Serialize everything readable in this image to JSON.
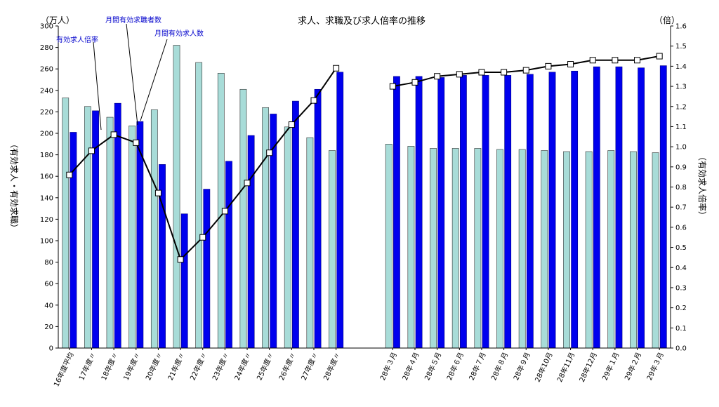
{
  "chart_data": {
    "type": "bar",
    "title": "求人、求職及び求人倍率の推移",
    "left_unit": "（万人）",
    "right_unit": "（倍）",
    "ylabel_left": "（有効求人・有効求職）",
    "ylabel_right": "（有効求人倍率）",
    "ylim_left": [
      0,
      300
    ],
    "ylim_right": [
      0,
      1.6
    ],
    "yticks_left": [
      "0",
      "20",
      "40",
      "60",
      "80",
      "100",
      "120",
      "140",
      "160",
      "180",
      "200",
      "220",
      "240",
      "260",
      "280",
      "300"
    ],
    "yticks_right": [
      "0.0",
      "0.1",
      "0.2",
      "0.3",
      "0.4",
      "0.5",
      "0.6",
      "0.7",
      "0.8",
      "0.9",
      "1.0",
      "1.1",
      "1.2",
      "1.3",
      "1.4",
      "1.5",
      "1.6"
    ],
    "categories": [
      "16年度平均",
      "17年度〃",
      "18年度〃",
      "19年度〃",
      "20年度〃",
      "21年度〃",
      "22年度〃",
      "23年度〃",
      "24年度〃",
      "25年度〃",
      "26年度〃",
      "27年度〃",
      "28年度〃",
      "28年３月",
      "28年４月",
      "28年５月",
      "28年６月",
      "28年７月",
      "28年８月",
      "28年９月",
      "28年10月",
      "28年11月",
      "28年12月",
      "29年１月",
      "29年２月",
      "29年３月"
    ],
    "annotations": [
      "有効求人倍率",
      "月間有効求職者数",
      "月間有効求人数"
    ],
    "series": [
      {
        "name": "月間有効求職者数",
        "axis": "left",
        "color": "#a8dcd8",
        "values": [
          233,
          225,
          215,
          207,
          222,
          282,
          266,
          256,
          241,
          224,
          206,
          196,
          184,
          190,
          188,
          186,
          186,
          186,
          185,
          185,
          184,
          183,
          183,
          184,
          183,
          182
        ]
      },
      {
        "name": "月間有効求人数",
        "axis": "left",
        "color": "#0000ee",
        "values": [
          201,
          221,
          228,
          211,
          171,
          125,
          148,
          174,
          198,
          218,
          230,
          241,
          257,
          253,
          253,
          252,
          254,
          254,
          254,
          255,
          257,
          258,
          262,
          262,
          261,
          263
        ]
      },
      {
        "name": "有効求人倍率",
        "axis": "right",
        "color": "#000000",
        "values": [
          0.86,
          0.98,
          1.06,
          1.02,
          0.77,
          0.44,
          0.55,
          0.68,
          0.82,
          0.97,
          1.11,
          1.23,
          1.39,
          1.3,
          1.32,
          1.35,
          1.36,
          1.37,
          1.37,
          1.38,
          1.4,
          1.41,
          1.43,
          1.43,
          1.43,
          1.45
        ]
      }
    ]
  }
}
